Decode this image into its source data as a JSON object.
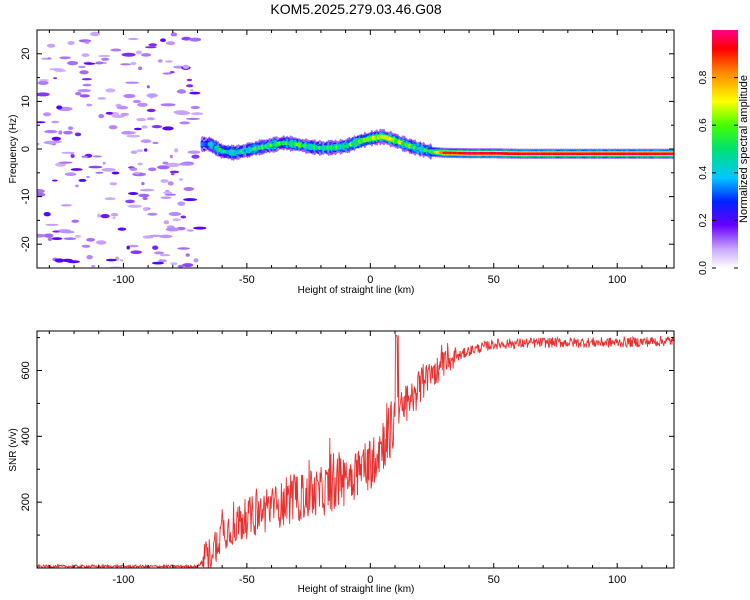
{
  "title": "KOM5.2025.279.03.46.G08",
  "chart_data": [
    {
      "type": "heatmap",
      "name": "spectrogram",
      "xlabel": "Height of straight line (km)",
      "ylabel": "Frequency (Hz)",
      "xlim": [
        -135,
        123
      ],
      "ylim": [
        -25,
        25
      ],
      "xticks": [
        -100,
        -50,
        0,
        50,
        100
      ],
      "yticks": [
        -20,
        -10,
        0,
        10,
        20
      ],
      "colorbar": {
        "label": "Normalized spectral amplitude",
        "range": [
          0,
          1
        ],
        "ticks": [
          0.0,
          0.2,
          0.4,
          0.6,
          0.8
        ]
      },
      "ridge": {
        "x": [
          -68,
          -65,
          -60,
          -55,
          -50,
          -45,
          -40,
          -35,
          -30,
          -25,
          -20,
          -15,
          -10,
          -5,
          0,
          5,
          10,
          15,
          20,
          25,
          30,
          40,
          50,
          60,
          70,
          80,
          90,
          100,
          110,
          120,
          123
        ],
        "frequency": [
          1.0,
          1.0,
          -0.5,
          -0.8,
          -0.3,
          0.3,
          0.8,
          1.3,
          1.0,
          0.5,
          0.2,
          0.3,
          0.6,
          1.5,
          2.2,
          2.6,
          1.8,
          0.8,
          0.0,
          -0.6,
          -0.8,
          -0.9,
          -0.9,
          -1.0,
          -1.0,
          -1.0,
          -1.0,
          -1.0,
          -1.0,
          -1.0,
          -1.0
        ],
        "amplitude": [
          0.25,
          0.4,
          0.45,
          0.5,
          0.45,
          0.5,
          0.55,
          0.5,
          0.55,
          0.45,
          0.5,
          0.55,
          0.5,
          0.6,
          0.65,
          0.7,
          0.65,
          0.55,
          0.45,
          0.55,
          0.9,
          0.95,
          0.95,
          0.95,
          0.95,
          0.95,
          0.95,
          0.95,
          0.95,
          0.95,
          0.95
        ]
      },
      "noise_region": [
        -135,
        -69
      ]
    },
    {
      "type": "line",
      "name": "snr",
      "xlabel": "Height of straight line (km)",
      "ylabel": "SNR (v/v)",
      "xlim": [
        -135,
        123
      ],
      "ylim": [
        0,
        720
      ],
      "xticks": [
        -100,
        -50,
        0,
        50,
        100
      ],
      "yticks": [
        200,
        400,
        600
      ],
      "color": "#e83030",
      "trend": {
        "x": [
          -135,
          -100,
          -70,
          -65,
          -60,
          -50,
          -40,
          -30,
          -20,
          -10,
          0,
          5,
          10,
          15,
          20,
          25,
          30,
          40,
          50,
          70,
          100,
          123
        ],
        "snr": [
          5,
          5,
          5,
          40,
          110,
          150,
          180,
          210,
          230,
          270,
          320,
          380,
          440,
          500,
          550,
          590,
          620,
          660,
          680,
          685,
          685,
          690
        ]
      }
    }
  ]
}
